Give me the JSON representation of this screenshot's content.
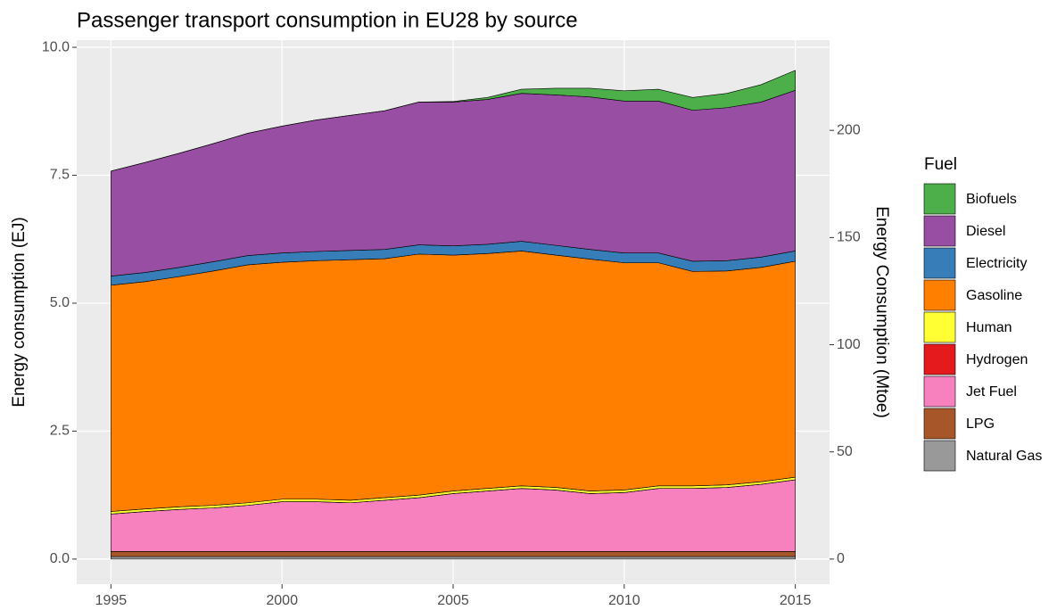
{
  "chart_data": {
    "type": "stacked_area",
    "title": "Passenger transport consumption in EU28 by source",
    "y_label": "Energy consumption (EJ)",
    "y2_label": "Energy Consumption (Mtoe)",
    "legend_title": "Fuel",
    "legend_position": "right",
    "grid": true,
    "x": [
      1995,
      1996,
      1997,
      1998,
      1999,
      2000,
      2001,
      2002,
      2003,
      2004,
      2005,
      2006,
      2007,
      2008,
      2009,
      2010,
      2011,
      2012,
      2013,
      2014,
      2015
    ],
    "xlim": [
      1994,
      2016
    ],
    "xticks": [
      1995,
      2000,
      2005,
      2010,
      2015
    ],
    "ylim": [
      -0.49,
      10.14
    ],
    "yticks": [
      {
        "value": 0,
        "label": "0.0"
      },
      2.5,
      {
        "value": 5,
        "label": "5.0"
      },
      7.5,
      {
        "value": 10,
        "label": "10.0"
      }
    ],
    "y2lim": [
      -11.7,
      242.1
    ],
    "y2ticks": [
      0,
      50,
      100,
      150,
      200
    ],
    "series": [
      {
        "name": "Biofuels",
        "color": "#4daf4a",
        "values": [
          0,
          0,
          0,
          0,
          0,
          0,
          0,
          0,
          0,
          0,
          0.01,
          0.04,
          0.08,
          0.13,
          0.17,
          0.2,
          0.23,
          0.25,
          0.28,
          0.34,
          0.39
        ]
      },
      {
        "name": "Diesel",
        "color": "#984ea3",
        "values": [
          2.05,
          2.15,
          2.23,
          2.31,
          2.39,
          2.48,
          2.57,
          2.64,
          2.71,
          2.79,
          2.81,
          2.83,
          2.89,
          2.94,
          2.98,
          2.97,
          2.97,
          2.95,
          2.99,
          3.03,
          3.14
        ]
      },
      {
        "name": "Electricity",
        "color": "#377eb8",
        "values": [
          0.18,
          0.18,
          0.18,
          0.18,
          0.18,
          0.18,
          0.18,
          0.18,
          0.18,
          0.18,
          0.18,
          0.18,
          0.19,
          0.19,
          0.19,
          0.19,
          0.19,
          0.2,
          0.2,
          0.2,
          0.2
        ]
      },
      {
        "name": "Gasoline",
        "color": "#ff7f00",
        "values": [
          4.42,
          4.44,
          4.5,
          4.58,
          4.65,
          4.63,
          4.66,
          4.7,
          4.67,
          4.71,
          4.61,
          4.59,
          4.59,
          4.54,
          4.53,
          4.44,
          4.36,
          4.19,
          4.18,
          4.19,
          4.22
        ]
      },
      {
        "name": "Human",
        "color": "#ffff33",
        "values": [
          0.05,
          0.05,
          0.05,
          0.05,
          0.05,
          0.05,
          0.05,
          0.05,
          0.05,
          0.05,
          0.05,
          0.05,
          0.05,
          0.05,
          0.05,
          0.05,
          0.05,
          0.05,
          0.05,
          0.05,
          0.05
        ]
      },
      {
        "name": "Hydrogen",
        "color": "#e41a1c",
        "values": [
          0,
          0,
          0,
          0,
          0,
          0,
          0,
          0,
          0,
          0,
          0,
          0,
          0,
          0,
          0,
          0,
          0,
          0,
          0,
          0,
          0
        ]
      },
      {
        "name": "Jet Fuel",
        "color": "#f781bf",
        "values": [
          0.73,
          0.78,
          0.82,
          0.85,
          0.9,
          0.97,
          0.97,
          0.95,
          1.0,
          1.05,
          1.13,
          1.18,
          1.23,
          1.2,
          1.13,
          1.15,
          1.23,
          1.23,
          1.25,
          1.31,
          1.4
        ]
      },
      {
        "name": "LPG",
        "color": "#a65628",
        "values": [
          0.1,
          0.1,
          0.1,
          0.1,
          0.1,
          0.1,
          0.1,
          0.1,
          0.1,
          0.1,
          0.1,
          0.1,
          0.1,
          0.1,
          0.1,
          0.1,
          0.1,
          0.1,
          0.1,
          0.1,
          0.1
        ]
      },
      {
        "name": "Natural Gas",
        "color": "#999999",
        "values": [
          0.05,
          0.05,
          0.05,
          0.05,
          0.05,
          0.05,
          0.05,
          0.05,
          0.05,
          0.05,
          0.05,
          0.05,
          0.05,
          0.05,
          0.05,
          0.05,
          0.05,
          0.05,
          0.05,
          0.05,
          0.05
        ]
      }
    ]
  }
}
